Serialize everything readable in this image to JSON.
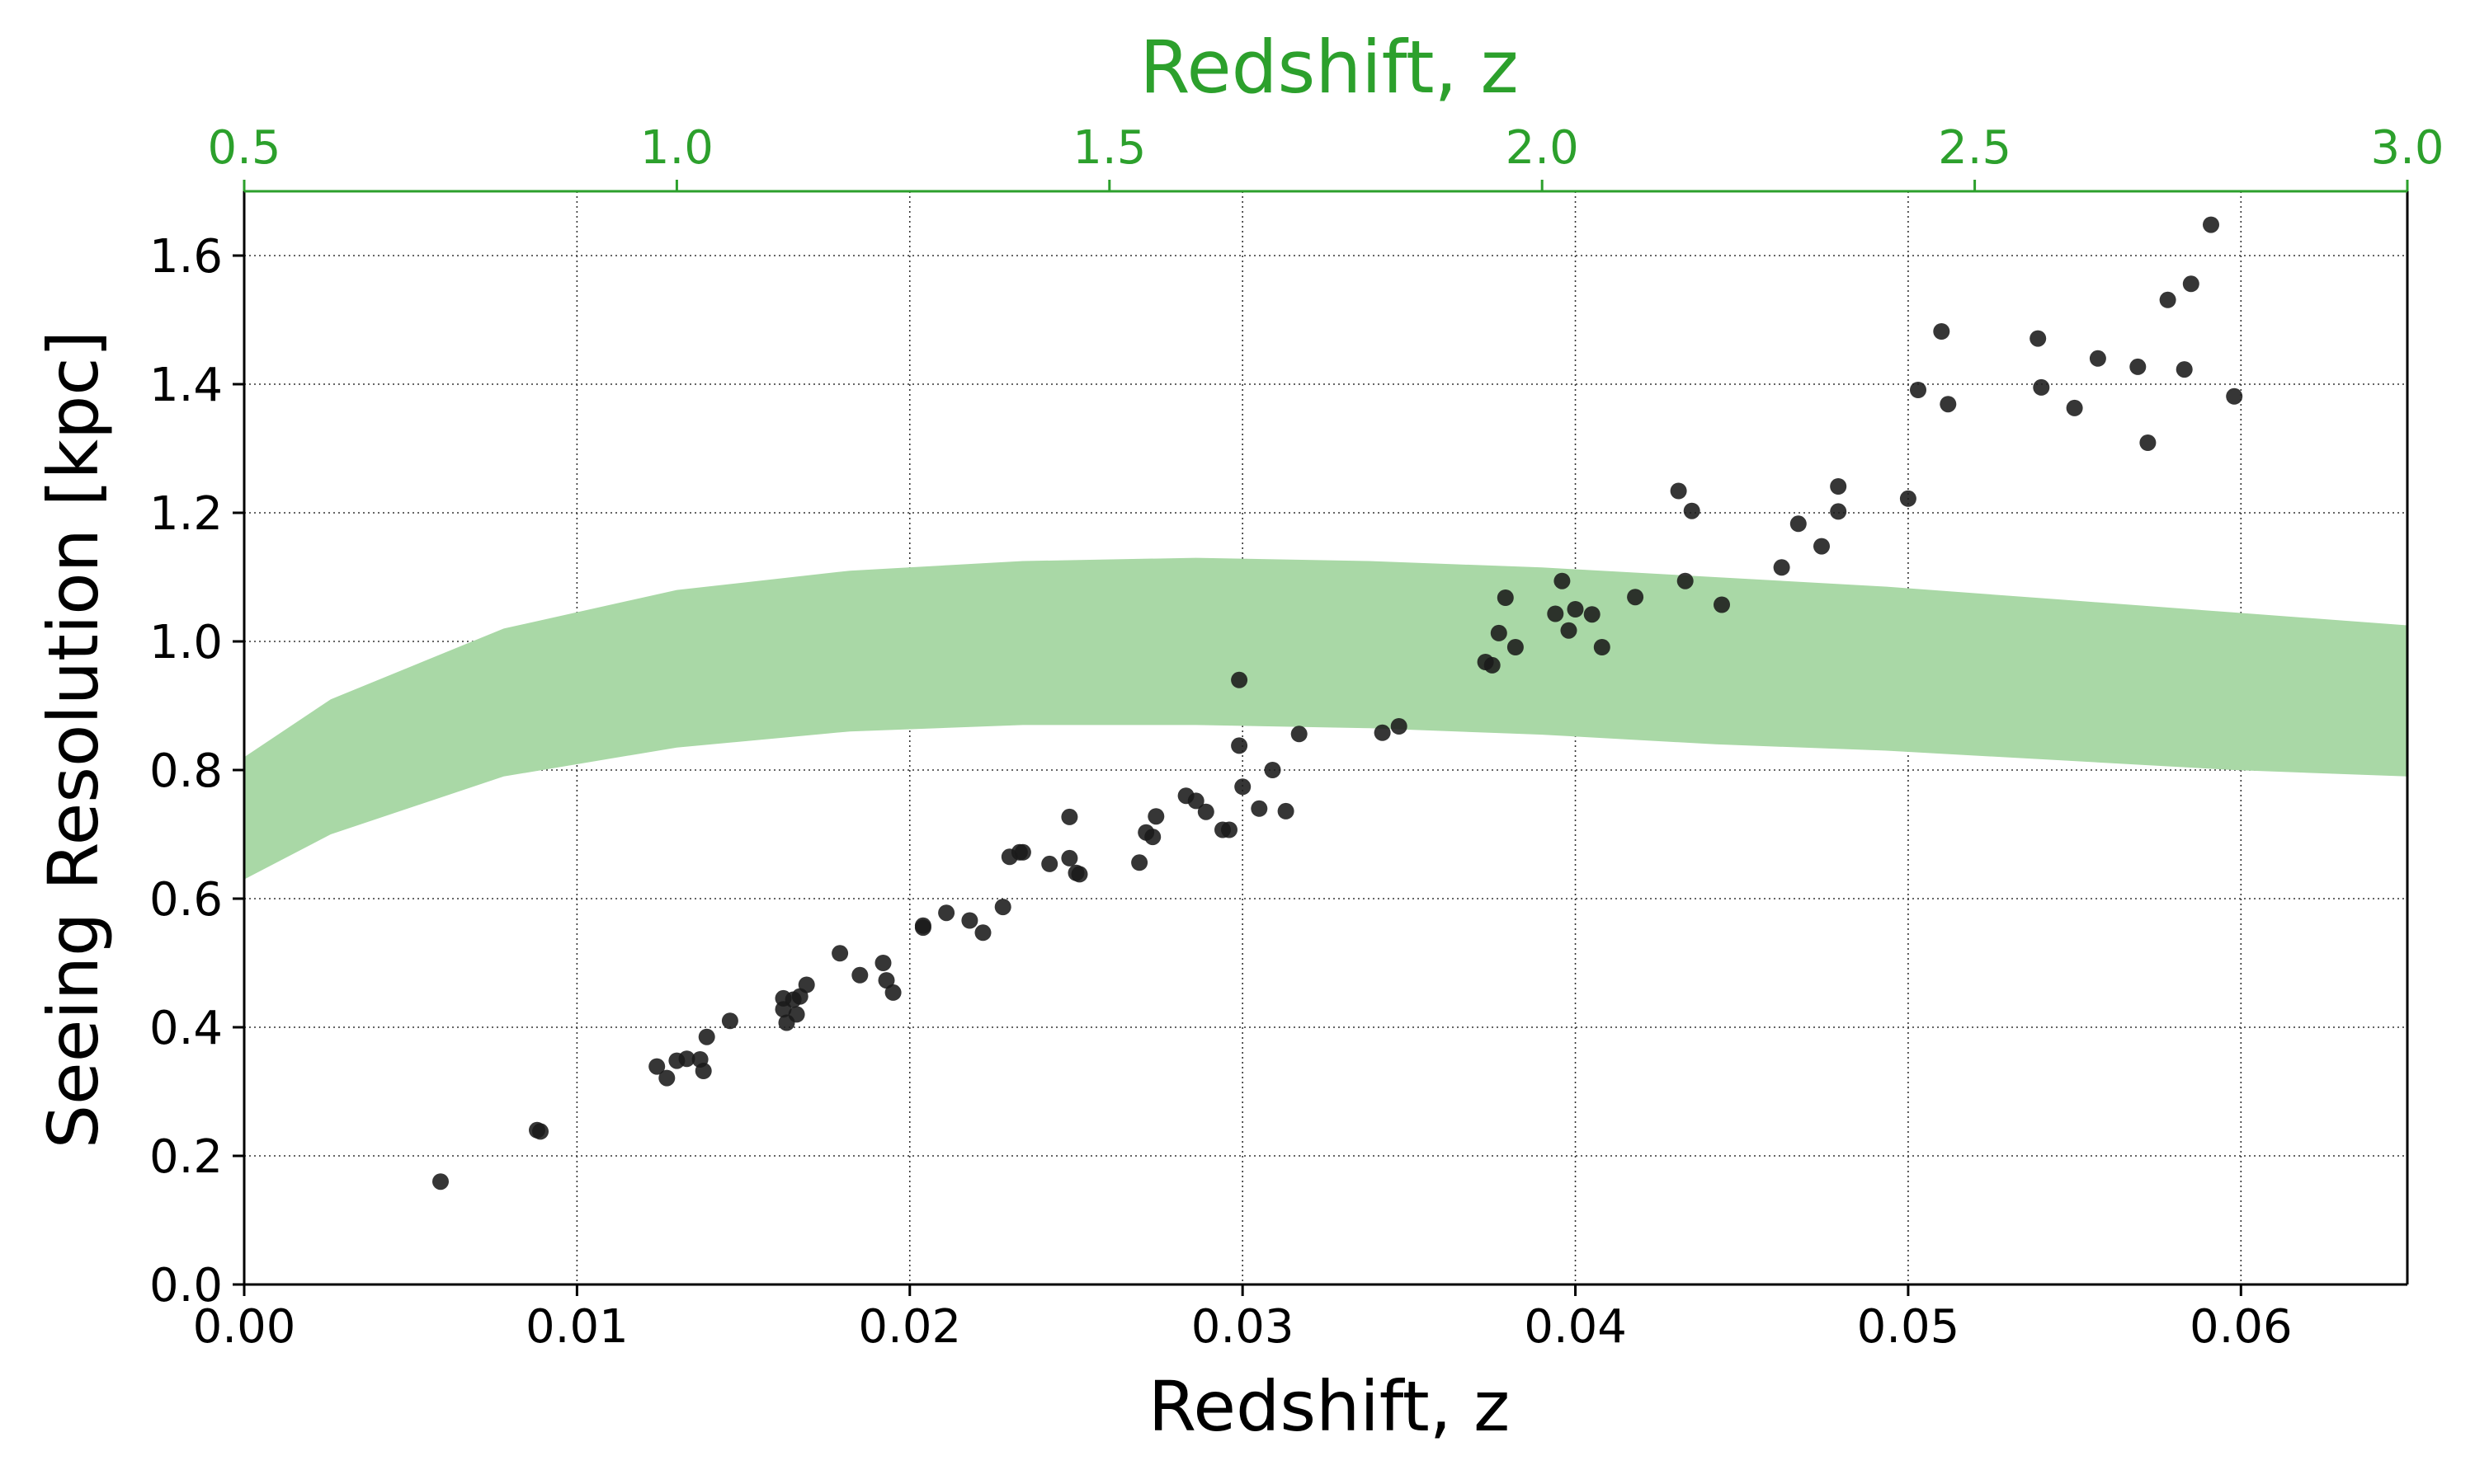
{
  "chart_data": {
    "type": "scatter",
    "xlabel": "Redshift, z",
    "ylabel": "Seeing Resolution [kpc]",
    "top_xlabel": "Redshift, z",
    "xlim": [
      0,
      0.065
    ],
    "ylim": [
      0,
      1.7
    ],
    "top_xlim": [
      0.5,
      3.0
    ],
    "grid": true,
    "x_ticks": [
      "0.00",
      "0.01",
      "0.02",
      "0.03",
      "0.04",
      "0.05",
      "0.06"
    ],
    "y_ticks": [
      "0.0",
      "0.2",
      "0.4",
      "0.6",
      "0.8",
      "1.0",
      "1.2",
      "1.4",
      "1.6"
    ],
    "top_ticks": [
      "0.5",
      "1.0",
      "1.5",
      "2.0",
      "2.5",
      "3.0"
    ],
    "colors": {
      "points": "#1a1a1a",
      "band": "#a9d8a6",
      "top_axis": "#2ca02c"
    },
    "band": {
      "z_top": [
        0.5,
        0.6,
        0.8,
        1.0,
        1.2,
        1.4,
        1.6,
        1.8,
        2.0,
        2.2,
        2.4,
        2.6,
        2.8,
        3.0
      ],
      "lower": [
        0.63,
        0.7,
        0.79,
        0.835,
        0.86,
        0.87,
        0.87,
        0.865,
        0.855,
        0.84,
        0.83,
        0.815,
        0.8,
        0.79
      ],
      "upper": [
        0.82,
        0.91,
        1.02,
        1.08,
        1.11,
        1.125,
        1.13,
        1.125,
        1.115,
        1.1,
        1.085,
        1.065,
        1.045,
        1.025
      ]
    },
    "points": {
      "x": [
        0.0059,
        0.0088,
        0.0089,
        0.0124,
        0.0127,
        0.013,
        0.0133,
        0.0137,
        0.0138,
        0.0139,
        0.0146,
        0.0162,
        0.0162,
        0.0163,
        0.0165,
        0.0166,
        0.0167,
        0.0169,
        0.0179,
        0.0185,
        0.0192,
        0.0193,
        0.0195,
        0.0204,
        0.0204,
        0.0211,
        0.0218,
        0.0222,
        0.0228,
        0.023,
        0.0233,
        0.0234,
        0.0242,
        0.0248,
        0.0248,
        0.025,
        0.0251,
        0.0269,
        0.0271,
        0.0273,
        0.0274,
        0.0283,
        0.0286,
        0.0289,
        0.0294,
        0.0296,
        0.0299,
        0.0299,
        0.03,
        0.0305,
        0.0309,
        0.0313,
        0.0317,
        0.0342,
        0.0347,
        0.0373,
        0.0375,
        0.0377,
        0.0379,
        0.0382,
        0.0394,
        0.0396,
        0.0398,
        0.04,
        0.0405,
        0.0408,
        0.0418,
        0.0431,
        0.0433,
        0.0435,
        0.0444,
        0.0462,
        0.0467,
        0.0474,
        0.0479,
        0.0479,
        0.05,
        0.0503,
        0.051,
        0.0512,
        0.0539,
        0.054,
        0.055,
        0.0557,
        0.0569,
        0.0572,
        0.0578,
        0.0583,
        0.0585,
        0.0591,
        0.0598
      ],
      "y": [
        0.16,
        0.24,
        0.238,
        0.339,
        0.321,
        0.348,
        0.351,
        0.35,
        0.332,
        0.385,
        0.41,
        0.428,
        0.445,
        0.407,
        0.443,
        0.42,
        0.448,
        0.466,
        0.515,
        0.481,
        0.5,
        0.473,
        0.454,
        0.558,
        0.555,
        0.578,
        0.566,
        0.547,
        0.587,
        0.665,
        0.672,
        0.672,
        0.654,
        0.727,
        0.663,
        0.64,
        0.638,
        0.656,
        0.703,
        0.696,
        0.728,
        0.76,
        0.752,
        0.735,
        0.707,
        0.707,
        0.838,
        0.94,
        0.774,
        0.74,
        0.8,
        0.736,
        0.856,
        0.858,
        0.868,
        0.968,
        0.963,
        1.013,
        1.068,
        0.991,
        1.043,
        1.094,
        1.017,
        1.05,
        1.042,
        0.991,
        1.069,
        1.234,
        1.094,
        1.203,
        1.057,
        1.115,
        1.183,
        1.148,
        1.241,
        1.202,
        1.222,
        1.391,
        1.482,
        1.369,
        1.471,
        1.395,
        1.363,
        1.44,
        1.427,
        1.309,
        1.531,
        1.423,
        1.556,
        1.648,
        1.381
      ]
    }
  }
}
